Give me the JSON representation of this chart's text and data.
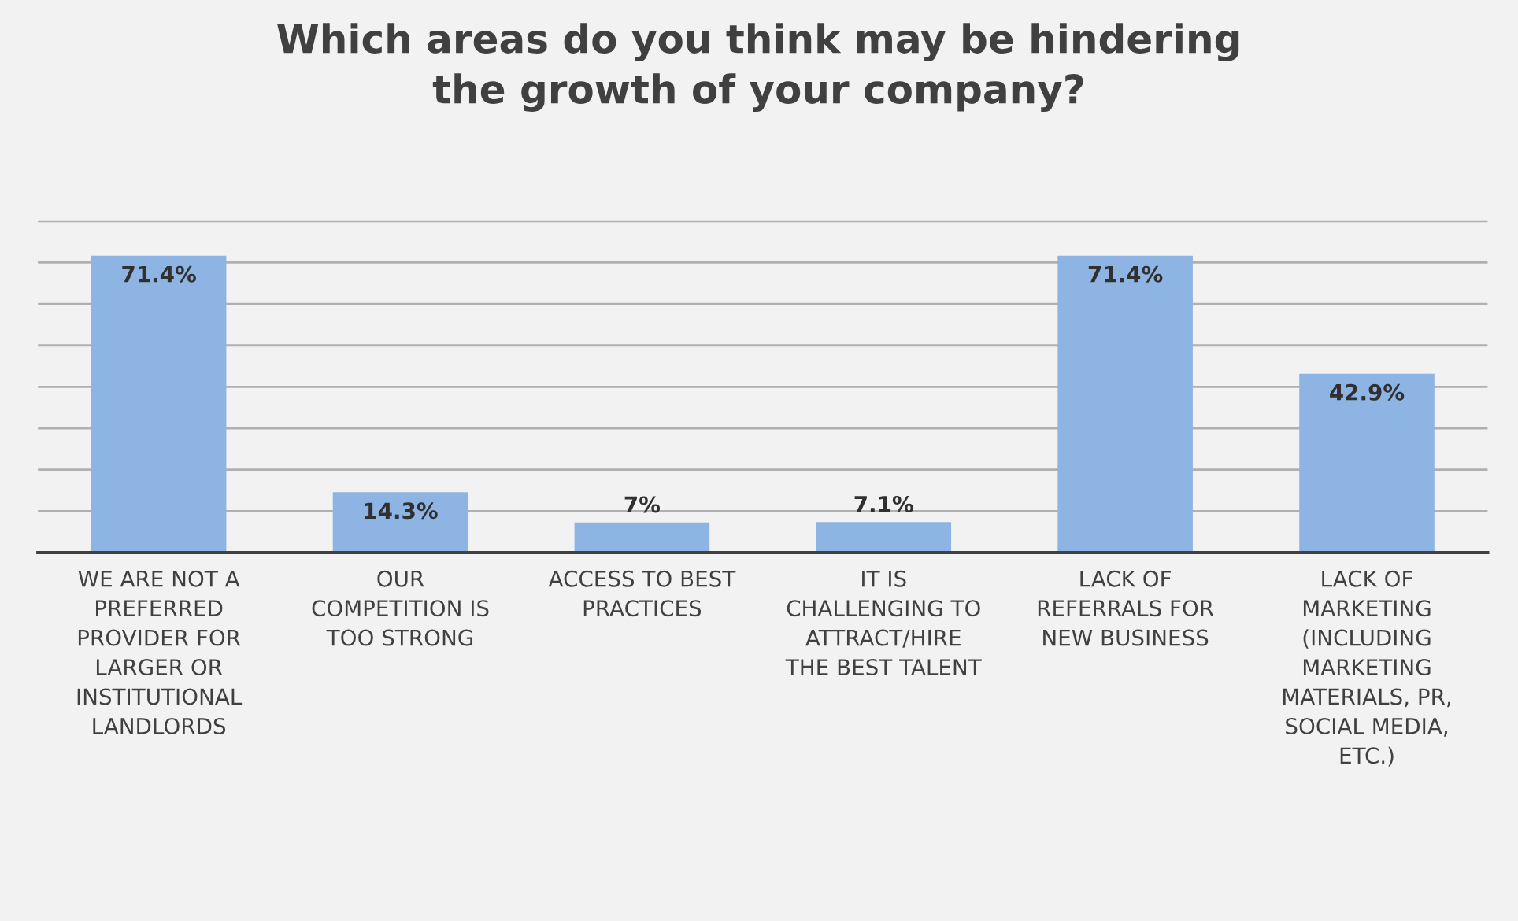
{
  "chart_data": {
    "type": "bar",
    "title": "Which areas do you think may be hindering\nthe growth of your company?",
    "categories": [
      "WE ARE NOT A\nPREFERRED\nPROVIDER FOR\nLARGER OR\nINSTITUTIONAL\nLANDLORDS",
      "OUR\nCOMPETITION IS\nTOO STRONG",
      "ACCESS TO BEST\nPRACTICES",
      "IT IS\nCHALLENGING TO\nATTRACT/HIRE\nTHE BEST TALENT",
      "LACK OF\nREFERRALS FOR\nNEW BUSINESS",
      "LACK OF\nMARKETING\n(INCLUDING\nMARKETING\nMATERIALS, PR,\nSOCIAL MEDIA,\nETC.)"
    ],
    "values": [
      71.4,
      14.3,
      7,
      7.1,
      71.4,
      42.9
    ],
    "value_labels": [
      "71.4%",
      "14.3%",
      "7%",
      "7.1%",
      "71.4%",
      "42.9%"
    ],
    "color": "#8db4e2",
    "ylim": [
      0,
      80
    ],
    "yticks": [
      {
        "value": 0,
        "label": null
      },
      {
        "value": 10,
        "label": null
      },
      {
        "value": 20,
        "label": null
      },
      {
        "value": 30,
        "label": null
      },
      {
        "value": 40,
        "label": null
      },
      {
        "value": 50,
        "label": null
      },
      {
        "value": 60,
        "label": null
      },
      {
        "value": 70,
        "label": null
      },
      {
        "value": 80,
        "label": null
      }
    ],
    "grid": "y",
    "tick_labels": "x"
  }
}
